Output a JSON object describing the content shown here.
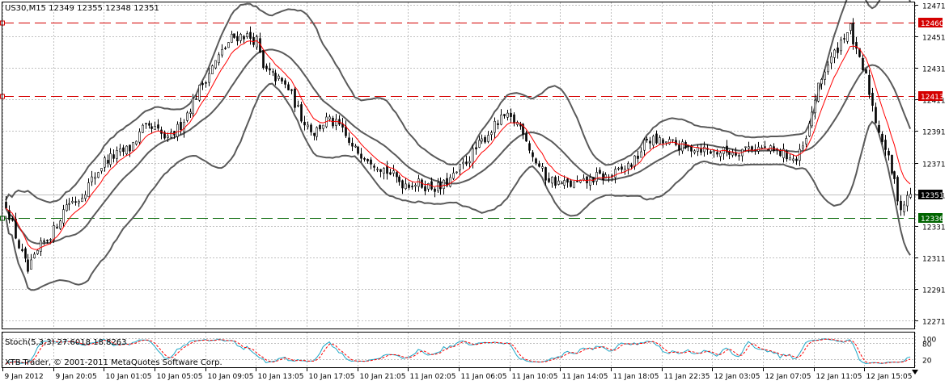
{
  "header": {
    "symbol_line": "US30,M15  12349 12355 12348 12351"
  },
  "footer": {
    "copyright": "XTB-Trader, © 2001-2011 MetaQuotes Software Corp."
  },
  "colors": {
    "background": "#ffffff",
    "grid": "#c0c0c0",
    "candle": "#000000",
    "ma_line": "#ff0000",
    "bollinger": "#5a5a5a",
    "resistance_line": "#d40000",
    "support_line": "#006400",
    "price_label_bg": "#000000",
    "stoch_main": "#20a8c8",
    "stoch_signal": "#ff0000"
  },
  "chart_data": [
    {
      "type": "candlestick",
      "title": "US30,M15",
      "quote": {
        "open": 12349,
        "high": 12355,
        "low": 12348,
        "close": 12351
      },
      "ylim": [
        12270,
        12474
      ],
      "y_ticks": [
        12471,
        12451,
        12431,
        12411,
        12391,
        12371,
        12351,
        12331,
        12311,
        12291,
        12271
      ],
      "x_tick_labels": [
        "9 Jan 2012",
        "9 Jan 20:05",
        "10 Jan 01:05",
        "10 Jan 05:05",
        "10 Jan 09:05",
        "10 Jan 13:05",
        "10 Jan 17:05",
        "10 Jan 21:05",
        "11 Jan 02:05",
        "11 Jan 06:05",
        "11 Jan 10:05",
        "11 Jan 14:05",
        "11 Jan 18:05",
        "11 Jan 22:35",
        "12 Jan 03:05",
        "12 Jan 07:05",
        "12 Jan 11:05",
        "12 Jan 15:05"
      ],
      "horizontal_lines": [
        {
          "value": 12460,
          "label": "12460",
          "style": "dashed",
          "color": "#d40000"
        },
        {
          "value": 12413,
          "label": "12413",
          "style": "dashed",
          "color": "#d40000"
        },
        {
          "value": 12336,
          "label": "12336",
          "style": "dashed",
          "color": "#006400"
        }
      ],
      "current_price": {
        "value": 12351,
        "label": "12351"
      },
      "price_path": [
        [
          0,
          12345
        ],
        [
          4,
          12318
        ],
        [
          7,
          12302
        ],
        [
          11,
          12318
        ],
        [
          15,
          12328
        ],
        [
          19,
          12345
        ],
        [
          23,
          12348
        ],
        [
          27,
          12360
        ],
        [
          31,
          12372
        ],
        [
          35,
          12376
        ],
        [
          39,
          12380
        ],
        [
          43,
          12392
        ],
        [
          47,
          12392
        ],
        [
          51,
          12385
        ],
        [
          55,
          12395
        ],
        [
          59,
          12410
        ],
        [
          63,
          12425
        ],
        [
          67,
          12438
        ],
        [
          71,
          12450
        ],
        [
          75,
          12452
        ],
        [
          79,
          12448
        ],
        [
          81,
          12430
        ],
        [
          85,
          12425
        ],
        [
          89,
          12418
        ],
        [
          93,
          12400
        ],
        [
          97,
          12390
        ],
        [
          101,
          12398
        ],
        [
          105,
          12394
        ],
        [
          109,
          12380
        ],
        [
          113,
          12376
        ],
        [
          117,
          12370
        ],
        [
          121,
          12364
        ],
        [
          125,
          12358
        ],
        [
          129,
          12358
        ],
        [
          133,
          12356
        ],
        [
          137,
          12355
        ],
        [
          141,
          12362
        ],
        [
          145,
          12372
        ],
        [
          149,
          12382
        ],
        [
          153,
          12392
        ],
        [
          157,
          12400
        ],
        [
          161,
          12396
        ],
        [
          163,
          12392
        ],
        [
          166,
          12375
        ],
        [
          170,
          12362
        ],
        [
          174,
          12358
        ],
        [
          178,
          12357
        ],
        [
          182,
          12358
        ],
        [
          186,
          12362
        ],
        [
          190,
          12362
        ],
        [
          194,
          12366
        ],
        [
          198,
          12372
        ],
        [
          202,
          12386
        ],
        [
          206,
          12384
        ],
        [
          210,
          12383
        ],
        [
          214,
          12380
        ],
        [
          218,
          12381
        ],
        [
          222,
          12378
        ],
        [
          226,
          12378
        ],
        [
          230,
          12378
        ],
        [
          234,
          12381
        ],
        [
          238,
          12380
        ],
        [
          242,
          12378
        ],
        [
          246,
          12376
        ],
        [
          249,
          12372
        ],
        [
          252,
          12385
        ],
        [
          255,
          12412
        ],
        [
          258,
          12430
        ],
        [
          261,
          12440
        ],
        [
          264,
          12452
        ],
        [
          266,
          12456
        ],
        [
          268,
          12440
        ],
        [
          271,
          12425
        ],
        [
          274,
          12398
        ],
        [
          277,
          12380
        ],
        [
          280,
          12358
        ],
        [
          282,
          12342
        ],
        [
          285,
          12351
        ]
      ],
      "moving_average": {
        "period_unit": "bar",
        "color": "red"
      },
      "bollinger_bands": {
        "color": "dark gray"
      }
    },
    {
      "type": "line",
      "title": "Stoch(5,3,3) 27.6018 18.8263",
      "indicator": "Stochastic Oscillator",
      "parameters": [
        5,
        3,
        3
      ],
      "series": [
        {
          "name": "main",
          "last_value": 27.6018
        },
        {
          "name": "signal",
          "last_value": 18.8263
        }
      ],
      "ylim": [
        0,
        100
      ],
      "y_ticks": [
        100,
        80,
        20
      ]
    }
  ]
}
